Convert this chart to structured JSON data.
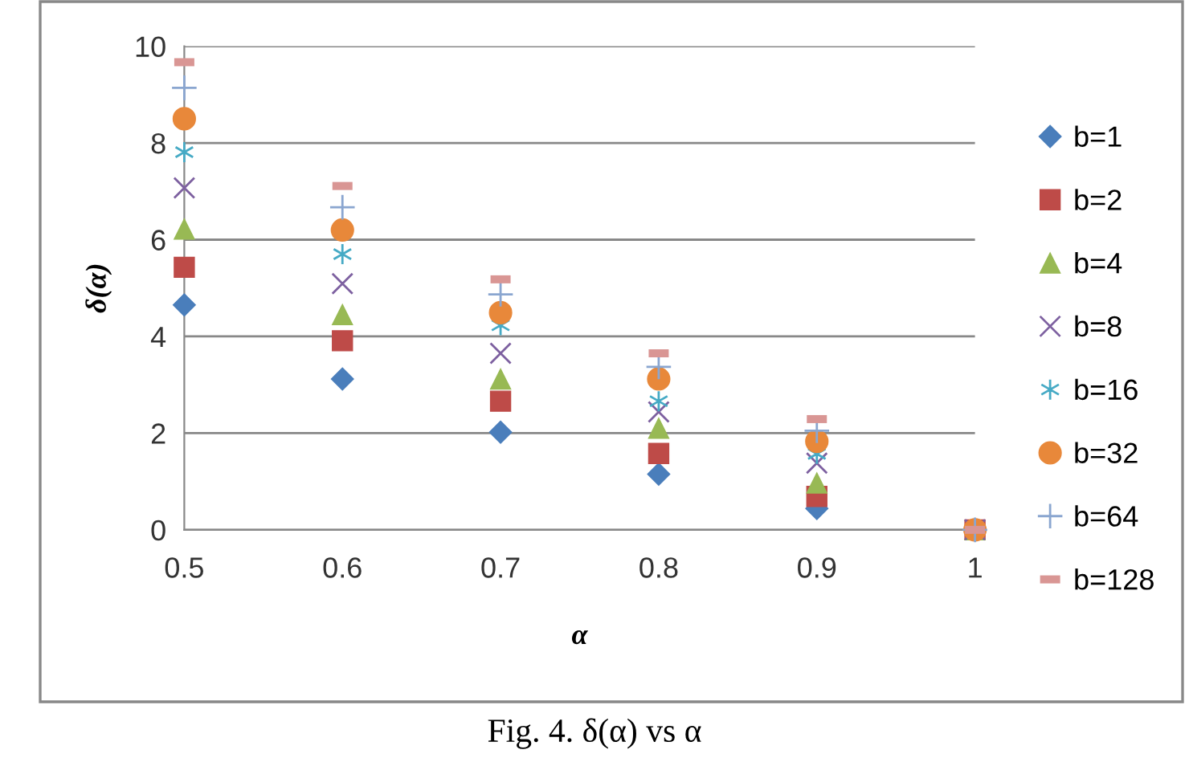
{
  "chart_data": {
    "type": "scatter",
    "xlabel": "α",
    "ylabel": "δ(α)",
    "annotations": [
      "Fig. 4. δ(α) vs α"
    ],
    "x": [
      0.5,
      0.6,
      0.7,
      0.8,
      0.9,
      1
    ],
    "series": [
      {
        "name": "b=1",
        "color": "#4a7ebb",
        "marker": "diamond",
        "values": [
          4.65,
          3.12,
          2.02,
          1.15,
          0.44,
          null
        ]
      },
      {
        "name": "b=2",
        "color": "#be4b48",
        "marker": "square",
        "values": [
          5.43,
          3.91,
          2.66,
          1.58,
          0.69,
          0
        ]
      },
      {
        "name": "b=4",
        "color": "#98b954",
        "marker": "triangle",
        "values": [
          6.22,
          4.45,
          3.12,
          2.1,
          0.97,
          0
        ]
      },
      {
        "name": "b=8",
        "color": "#7d60a0",
        "marker": "cross",
        "values": [
          7.07,
          5.09,
          3.65,
          2.44,
          1.38,
          0
        ]
      },
      {
        "name": "b=16",
        "color": "#46aac5",
        "marker": "cross",
        "values": [
          7.81,
          5.7,
          4.23,
          2.66,
          1.57,
          null
        ]
      },
      {
        "name": "b=32",
        "color": "#e8883a",
        "marker": "circle",
        "values": [
          8.5,
          6.2,
          4.49,
          3.12,
          1.83,
          0
        ]
      },
      {
        "name": "b=64",
        "color": "#8aa6d0",
        "marker": "plus",
        "values": [
          9.14,
          6.67,
          4.87,
          3.37,
          2.05,
          0
        ]
      },
      {
        "name": "b=128",
        "color": "#d99694",
        "marker": "square",
        "values": [
          9.67,
          7.11,
          5.18,
          3.65,
          2.29,
          0
        ]
      }
    ],
    "xlim": [
      0.5,
      1
    ],
    "xticks": [
      0.5,
      0.6,
      0.7,
      0.8,
      0.9,
      {
        "value": 1,
        "label": "1"
      }
    ],
    "ylim": [
      0,
      10
    ],
    "yticks": [
      0,
      2,
      4,
      6,
      8,
      10
    ],
    "grid": "y",
    "legend": "right"
  }
}
